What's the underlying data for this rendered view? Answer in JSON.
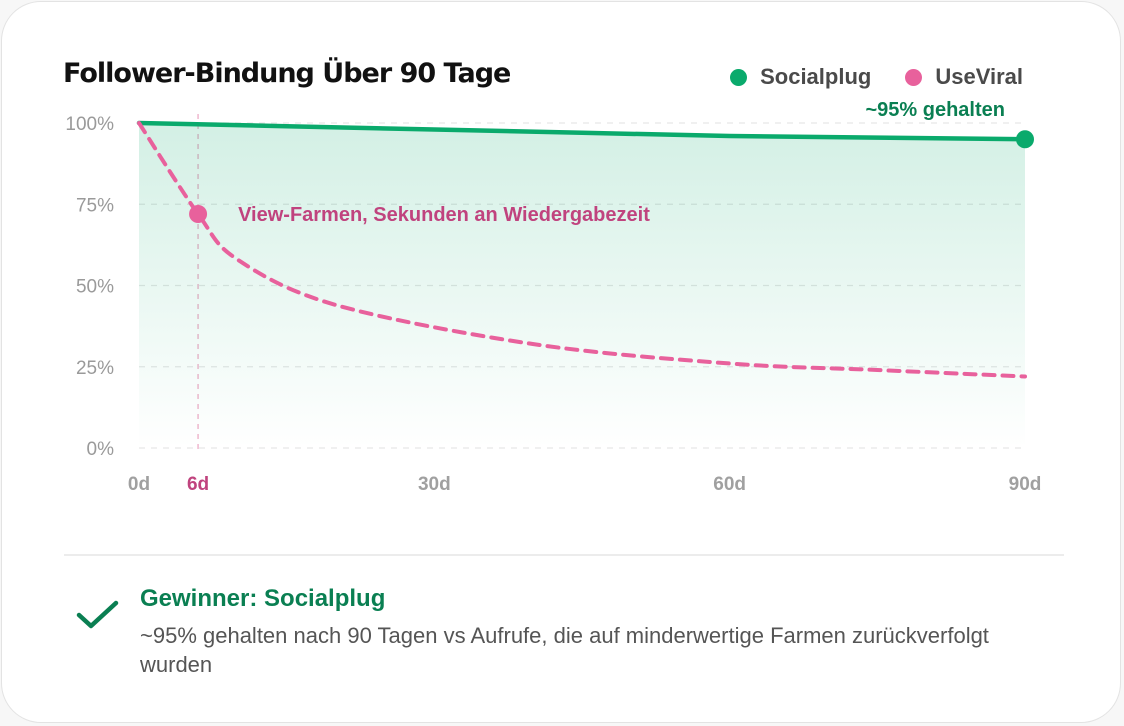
{
  "header": {
    "title": "Follower-Bindung Über 90 Tage"
  },
  "legend": {
    "items": [
      {
        "label": "Socialplug",
        "color": "#0aaa6c"
      },
      {
        "label": "UseViral",
        "color": "#e8619c"
      }
    ]
  },
  "chart_data": {
    "type": "line",
    "title": "Follower-Bindung Über 90 Tage",
    "xlabel": "",
    "ylabel": "",
    "xlim": [
      0,
      90
    ],
    "ylim": [
      0,
      100
    ],
    "y_ticks": [
      {
        "value": 100,
        "label": "100%"
      },
      {
        "value": 75,
        "label": "75%"
      },
      {
        "value": 50,
        "label": "50%"
      },
      {
        "value": 25,
        "label": "25%"
      },
      {
        "value": 0,
        "label": "0%"
      }
    ],
    "x_ticks": [
      {
        "value": 0,
        "label": "0d"
      },
      {
        "value": 6,
        "label": "6d",
        "highlight": true
      },
      {
        "value": 30,
        "label": "30d"
      },
      {
        "value": 60,
        "label": "60d"
      },
      {
        "value": 90,
        "label": "90d"
      }
    ],
    "grid": true,
    "legend_position": "top-right",
    "series": [
      {
        "name": "Socialplug",
        "color": "#0aaa6c",
        "style": "solid",
        "area_fill": true,
        "x": [
          0,
          15,
          30,
          45,
          60,
          75,
          90
        ],
        "y": [
          100,
          99,
          98,
          97,
          96,
          95.5,
          95
        ]
      },
      {
        "name": "UseViral",
        "color": "#e8619c",
        "style": "dashed",
        "x": [
          0,
          6,
          10,
          20,
          40,
          60,
          75,
          90
        ],
        "y": [
          100,
          72,
          58,
          44,
          32,
          26,
          24,
          22
        ]
      }
    ],
    "markers": [
      {
        "series": "Socialplug",
        "x": 90,
        "y": 95
      },
      {
        "series": "UseViral",
        "x": 6,
        "y": 72
      }
    ],
    "annotations": [
      {
        "text": "~95% gehalten",
        "series": "Socialplug"
      },
      {
        "text": "View-Farmen, Sekunden an Wiedergabezeit",
        "series": "UseViral"
      }
    ],
    "reference_line_x": 6
  },
  "summary": {
    "title": "Gewinner: Socialplug",
    "text": "~95% gehalten nach 90 Tagen vs Aufrufe, die auf minderwertige Farmen zurückverfolgt wurden",
    "check_color": "#0a7f52"
  }
}
